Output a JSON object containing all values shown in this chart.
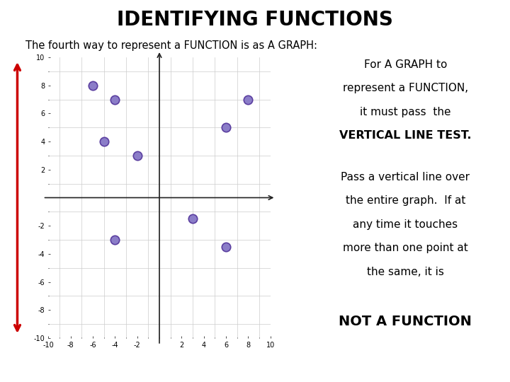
{
  "title": "IDENTIFYING FUNCTIONS",
  "subtitle": "The fourth way to represent a FUNCTION is as A GRAPH:",
  "points": [
    [
      -6,
      8
    ],
    [
      -4,
      7
    ],
    [
      -5,
      4
    ],
    [
      -2,
      3
    ],
    [
      3,
      -1.5
    ],
    [
      -4,
      -3
    ],
    [
      6,
      5
    ],
    [
      8,
      7
    ],
    [
      6,
      -3.5
    ]
  ],
  "point_color": "#8B7DC8",
  "point_edge_color": "#5B3FA0",
  "point_size": 80,
  "xlim": [
    -10,
    10
  ],
  "ylim": [
    -10,
    10
  ],
  "xticks": [
    -10,
    -8,
    -6,
    -4,
    -2,
    2,
    4,
    6,
    8,
    10
  ],
  "yticks": [
    -10,
    -8,
    -6,
    -4,
    -2,
    2,
    4,
    6,
    8,
    10
  ],
  "axis_color": "#222222",
  "grid_color": "#cccccc",
  "arrow_color": "#cc0000",
  "text1_line1": "For A GRAPH to",
  "text1_line2": "represent a FUNCTION,",
  "text1_line3": "it must pass  the",
  "text1_line4": "VERTICAL LINE TEST.",
  "text2_line1": "Pass a vertical line over",
  "text2_line2": "the entire graph.  If at",
  "text2_line3": "any time it touches",
  "text2_line4": "more than one point at",
  "text2_line5": "the same, it is",
  "text3": "NOT A FUNCTION",
  "bg_color": "#ffffff"
}
